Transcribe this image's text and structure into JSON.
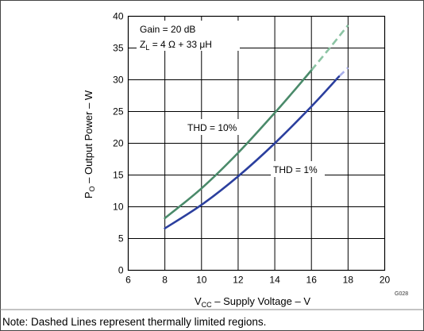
{
  "chart_data": {
    "type": "line",
    "xlabel": {
      "main": "V",
      "sub": "CC",
      "rest": " – Supply Voltage – V"
    },
    "ylabel": {
      "main": "P",
      "sub": "O",
      "rest": " – Output Power – W"
    },
    "xlim": [
      6,
      20
    ],
    "ylim": [
      0,
      40
    ],
    "xticks": [
      6,
      8,
      10,
      12,
      14,
      16,
      18,
      20
    ],
    "yticks": [
      0,
      5,
      10,
      15,
      20,
      25,
      30,
      35,
      40
    ],
    "grid": true,
    "annotations": {
      "gain": "Gain = 20 dB",
      "load": {
        "main": "Z",
        "sub": "L",
        "rest": " = 4 Ω + 33 μH"
      },
      "thd10": "THD = 10%",
      "thd1": "THD = 1%"
    },
    "figure_code": "G028",
    "series": [
      {
        "name": "THD = 10%",
        "color": "#4a8a6a",
        "dashed_color": "#8cc4a4",
        "solid": {
          "x": [
            8,
            10,
            12,
            14,
            15,
            16
          ],
          "y": [
            8.2,
            12.9,
            18.5,
            24.8,
            28.1,
            31.5
          ]
        },
        "dashed": {
          "x": [
            16,
            17,
            18
          ],
          "y": [
            31.5,
            35.0,
            38.6
          ]
        }
      },
      {
        "name": "THD = 1%",
        "color": "#2b3f9e",
        "dashed_color": "#a8aee8",
        "solid": {
          "x": [
            8,
            10,
            12,
            14,
            16,
            17.5
          ],
          "y": [
            6.6,
            10.3,
            14.8,
            20.0,
            25.8,
            30.5
          ]
        },
        "dashed": {
          "x": [
            17.5,
            18
          ],
          "y": [
            30.5,
            31.9
          ]
        }
      }
    ]
  },
  "footer": {
    "note": "Note: Dashed Lines represent thermally limited regions."
  }
}
